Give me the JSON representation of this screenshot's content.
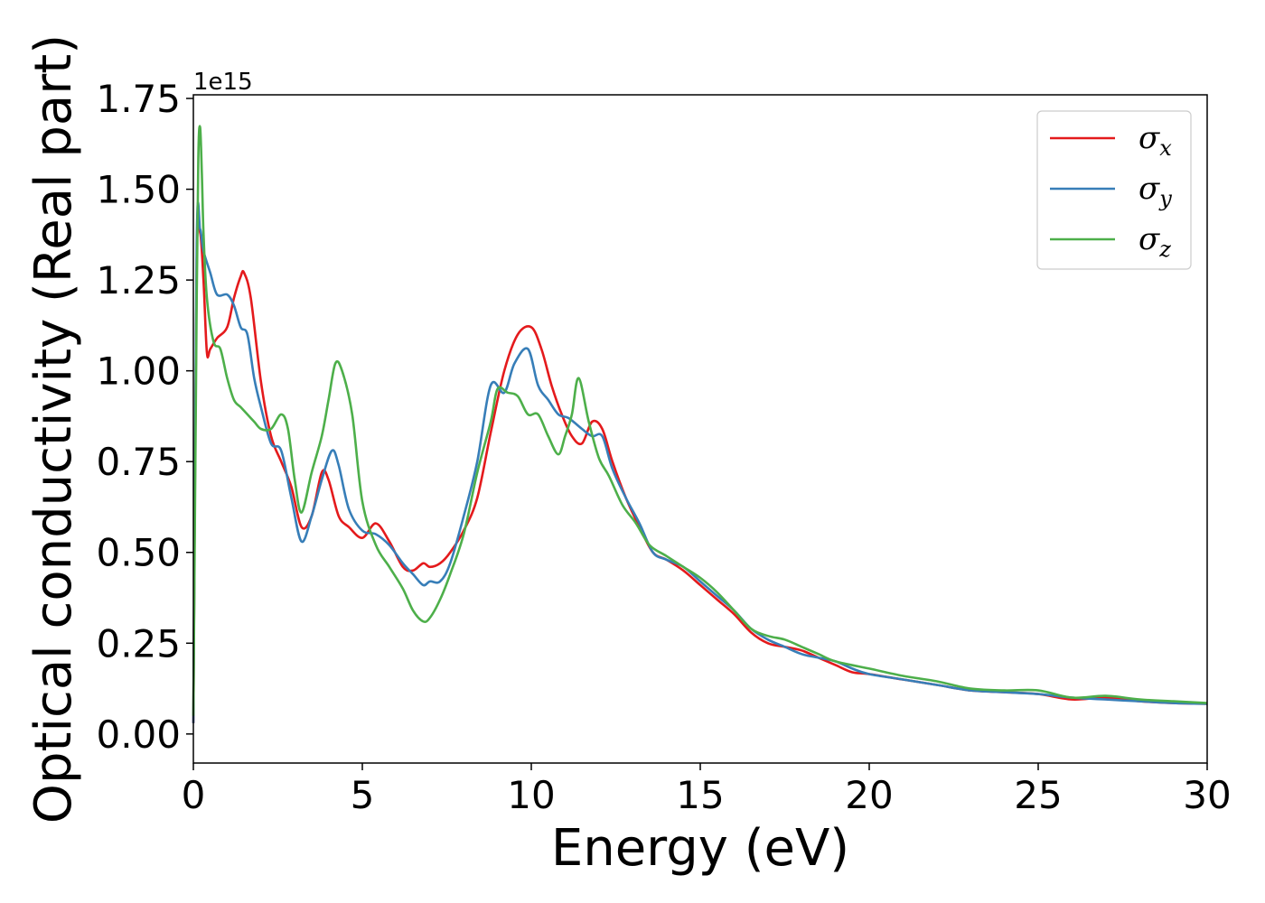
{
  "chart_data": {
    "type": "line",
    "title": "",
    "xlabel": "Energy (eV)",
    "ylabel": "Optical conductivity (Real part)",
    "y_offset_label": "1e15",
    "xlim": [
      0,
      30
    ],
    "ylim": [
      -0.08,
      1.76
    ],
    "xticks": [
      0,
      5,
      10,
      15,
      20,
      25,
      30
    ],
    "xtick_labels": [
      "0",
      "5",
      "10",
      "15",
      "20",
      "25",
      "30"
    ],
    "yticks": [
      0.0,
      0.25,
      0.5,
      0.75,
      1.0,
      1.25,
      1.5,
      1.75
    ],
    "ytick_labels": [
      "0.00",
      "0.25",
      "0.50",
      "0.75",
      "1.00",
      "1.25",
      "1.50",
      "1.75"
    ],
    "grid": false,
    "legend_position": "top-right",
    "series": [
      {
        "name": "σx",
        "legend_base": "σ",
        "legend_sub": "x",
        "color": "#e41a1c",
        "x": [
          0,
          0.1,
          0.2,
          0.3,
          0.4,
          0.5,
          0.7,
          1.0,
          1.2,
          1.4,
          1.5,
          1.7,
          2.0,
          2.3,
          2.6,
          2.9,
          3.2,
          3.5,
          3.8,
          4.0,
          4.3,
          4.6,
          5.0,
          5.4,
          5.8,
          6.2,
          6.5,
          6.8,
          7.0,
          7.3,
          7.6,
          8.0,
          8.4,
          8.8,
          9.2,
          9.6,
          10.0,
          10.3,
          10.6,
          10.9,
          11.2,
          11.5,
          11.8,
          12.1,
          12.4,
          12.8,
          13.2,
          13.6,
          14.0,
          14.5,
          15.0,
          15.5,
          16.0,
          16.5,
          17.0,
          17.5,
          18.0,
          18.5,
          19.0,
          19.5,
          20.0,
          21.0,
          22.0,
          23.0,
          24.0,
          25.0,
          26.0,
          27.0,
          28.0,
          29.0,
          30.0
        ],
        "y": [
          0.03,
          1.3,
          1.38,
          1.25,
          1.05,
          1.06,
          1.09,
          1.12,
          1.2,
          1.26,
          1.27,
          1.2,
          0.97,
          0.82,
          0.75,
          0.68,
          0.57,
          0.6,
          0.72,
          0.7,
          0.6,
          0.57,
          0.54,
          0.58,
          0.53,
          0.46,
          0.45,
          0.47,
          0.46,
          0.47,
          0.5,
          0.56,
          0.65,
          0.83,
          1.0,
          1.1,
          1.12,
          1.06,
          0.96,
          0.88,
          0.82,
          0.8,
          0.86,
          0.84,
          0.75,
          0.65,
          0.57,
          0.5,
          0.48,
          0.45,
          0.41,
          0.37,
          0.33,
          0.28,
          0.25,
          0.24,
          0.23,
          0.21,
          0.19,
          0.17,
          0.165,
          0.15,
          0.135,
          0.12,
          0.115,
          0.11,
          0.095,
          0.1,
          0.09,
          0.085,
          0.083
        ]
      },
      {
        "name": "σy",
        "legend_base": "σ",
        "legend_sub": "y",
        "color": "#377eb8",
        "x": [
          0,
          0.1,
          0.2,
          0.3,
          0.5,
          0.7,
          1.0,
          1.2,
          1.4,
          1.6,
          1.8,
          2.0,
          2.3,
          2.6,
          2.9,
          3.2,
          3.5,
          3.8,
          4.1,
          4.3,
          4.6,
          5.0,
          5.4,
          5.8,
          6.2,
          6.5,
          6.8,
          7.0,
          7.3,
          7.6,
          8.0,
          8.4,
          8.8,
          9.2,
          9.5,
          9.9,
          10.2,
          10.5,
          10.8,
          11.1,
          11.5,
          11.8,
          12.1,
          12.4,
          12.8,
          13.2,
          13.6,
          14.0,
          14.5,
          15.0,
          15.5,
          16.0,
          16.5,
          17.0,
          17.5,
          18.0,
          18.5,
          19.0,
          19.5,
          20.0,
          21.0,
          22.0,
          23.0,
          24.0,
          25.0,
          26.0,
          27.0,
          28.0,
          29.0,
          30.0
        ],
        "y": [
          0.03,
          1.35,
          1.39,
          1.33,
          1.27,
          1.21,
          1.21,
          1.18,
          1.12,
          1.1,
          0.98,
          0.9,
          0.8,
          0.78,
          0.65,
          0.53,
          0.6,
          0.7,
          0.78,
          0.74,
          0.62,
          0.56,
          0.55,
          0.52,
          0.47,
          0.44,
          0.41,
          0.42,
          0.42,
          0.47,
          0.6,
          0.75,
          0.96,
          0.94,
          1.02,
          1.06,
          0.96,
          0.92,
          0.88,
          0.87,
          0.84,
          0.82,
          0.82,
          0.73,
          0.65,
          0.58,
          0.5,
          0.48,
          0.46,
          0.42,
          0.38,
          0.34,
          0.29,
          0.26,
          0.24,
          0.22,
          0.21,
          0.2,
          0.18,
          0.165,
          0.15,
          0.135,
          0.12,
          0.115,
          0.11,
          0.1,
          0.095,
          0.09,
          0.085,
          0.083
        ]
      },
      {
        "name": "σz",
        "legend_base": "σ",
        "legend_sub": "z",
        "color": "#4daf4a",
        "x": [
          0,
          0.1,
          0.15,
          0.2,
          0.25,
          0.3,
          0.4,
          0.6,
          0.8,
          1.0,
          1.2,
          1.4,
          1.6,
          1.8,
          2.0,
          2.3,
          2.6,
          2.8,
          3.0,
          3.2,
          3.5,
          3.8,
          4.0,
          4.2,
          4.4,
          4.7,
          5.0,
          5.4,
          5.8,
          6.2,
          6.5,
          6.8,
          7.0,
          7.3,
          7.6,
          8.0,
          8.4,
          8.8,
          9.0,
          9.3,
          9.6,
          9.9,
          10.2,
          10.5,
          10.8,
          11.0,
          11.2,
          11.4,
          11.7,
          12.0,
          12.3,
          12.7,
          13.1,
          13.5,
          14.0,
          14.5,
          15.0,
          15.5,
          16.0,
          16.5,
          17.0,
          17.5,
          18.0,
          18.5,
          19.0,
          20.0,
          21.0,
          22.0,
          23.0,
          24.0,
          25.0,
          26.0,
          27.0,
          28.0,
          29.0,
          30.0
        ],
        "y": [
          0.05,
          1.2,
          1.6,
          1.67,
          1.55,
          1.38,
          1.2,
          1.08,
          1.06,
          0.98,
          0.92,
          0.9,
          0.88,
          0.86,
          0.84,
          0.84,
          0.88,
          0.84,
          0.7,
          0.61,
          0.72,
          0.82,
          0.92,
          1.02,
          1.0,
          0.88,
          0.64,
          0.52,
          0.46,
          0.4,
          0.34,
          0.31,
          0.32,
          0.37,
          0.44,
          0.55,
          0.72,
          0.86,
          0.95,
          0.94,
          0.93,
          0.88,
          0.88,
          0.82,
          0.77,
          0.82,
          0.88,
          0.98,
          0.86,
          0.76,
          0.71,
          0.63,
          0.58,
          0.52,
          0.49,
          0.46,
          0.43,
          0.39,
          0.34,
          0.29,
          0.27,
          0.26,
          0.24,
          0.22,
          0.2,
          0.18,
          0.16,
          0.145,
          0.125,
          0.12,
          0.12,
          0.1,
          0.105,
          0.095,
          0.09,
          0.085
        ]
      }
    ]
  }
}
